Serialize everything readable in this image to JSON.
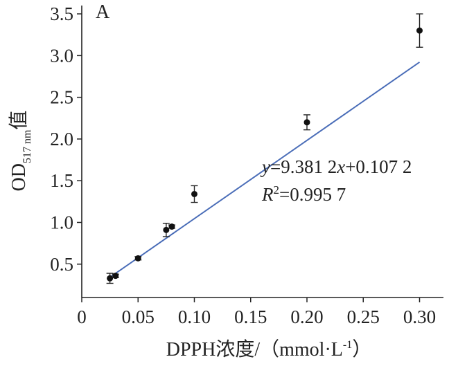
{
  "chart_data": {
    "type": "scatter",
    "panel_label": "A",
    "xlabel": {
      "main": "DPPH浓度/（mmol·L",
      "sup": "-1",
      "close": "）"
    },
    "ylabel": {
      "main": "OD",
      "sub": "517 nm",
      "tail": "值"
    },
    "xlim": [
      0,
      0.32
    ],
    "ylim": [
      0.1,
      3.6
    ],
    "xticks": [
      "0",
      "0.05",
      "0.10",
      "0.15",
      "0.20",
      "0.25",
      "0.30"
    ],
    "xtick_values": [
      0,
      0.05,
      0.1,
      0.15,
      0.2,
      0.25,
      0.3
    ],
    "yticks": [
      "0.5",
      "1.0",
      "1.5",
      "2.0",
      "2.5",
      "3.0",
      "3.5"
    ],
    "ytick_values": [
      0.5,
      1.0,
      1.5,
      2.0,
      2.5,
      3.0,
      3.5
    ],
    "grid": false,
    "points": [
      {
        "x": 0.025,
        "y": 0.33,
        "err": 0.06
      },
      {
        "x": 0.03,
        "y": 0.36,
        "err": 0.02
      },
      {
        "x": 0.05,
        "y": 0.57,
        "err": 0.02
      },
      {
        "x": 0.075,
        "y": 0.91,
        "err": 0.08
      },
      {
        "x": 0.08,
        "y": 0.95,
        "err": 0.02
      },
      {
        "x": 0.1,
        "y": 1.34,
        "err": 0.1
      },
      {
        "x": 0.2,
        "y": 2.2,
        "err": 0.09
      },
      {
        "x": 0.3,
        "y": 3.3,
        "err": 0.2
      }
    ],
    "fit": {
      "slope": 9.3812,
      "intercept": 0.1072,
      "x_range": [
        0.025,
        0.3
      ],
      "color": "#4a6db8"
    },
    "equation": {
      "y": "y",
      "rest1": "=9.381 2",
      "x": "x",
      "rest2": "+0.107 2",
      "r": "R",
      "r_sup": "2",
      "r_rest": "=0.995 7"
    },
    "marker_color": "#111111"
  }
}
